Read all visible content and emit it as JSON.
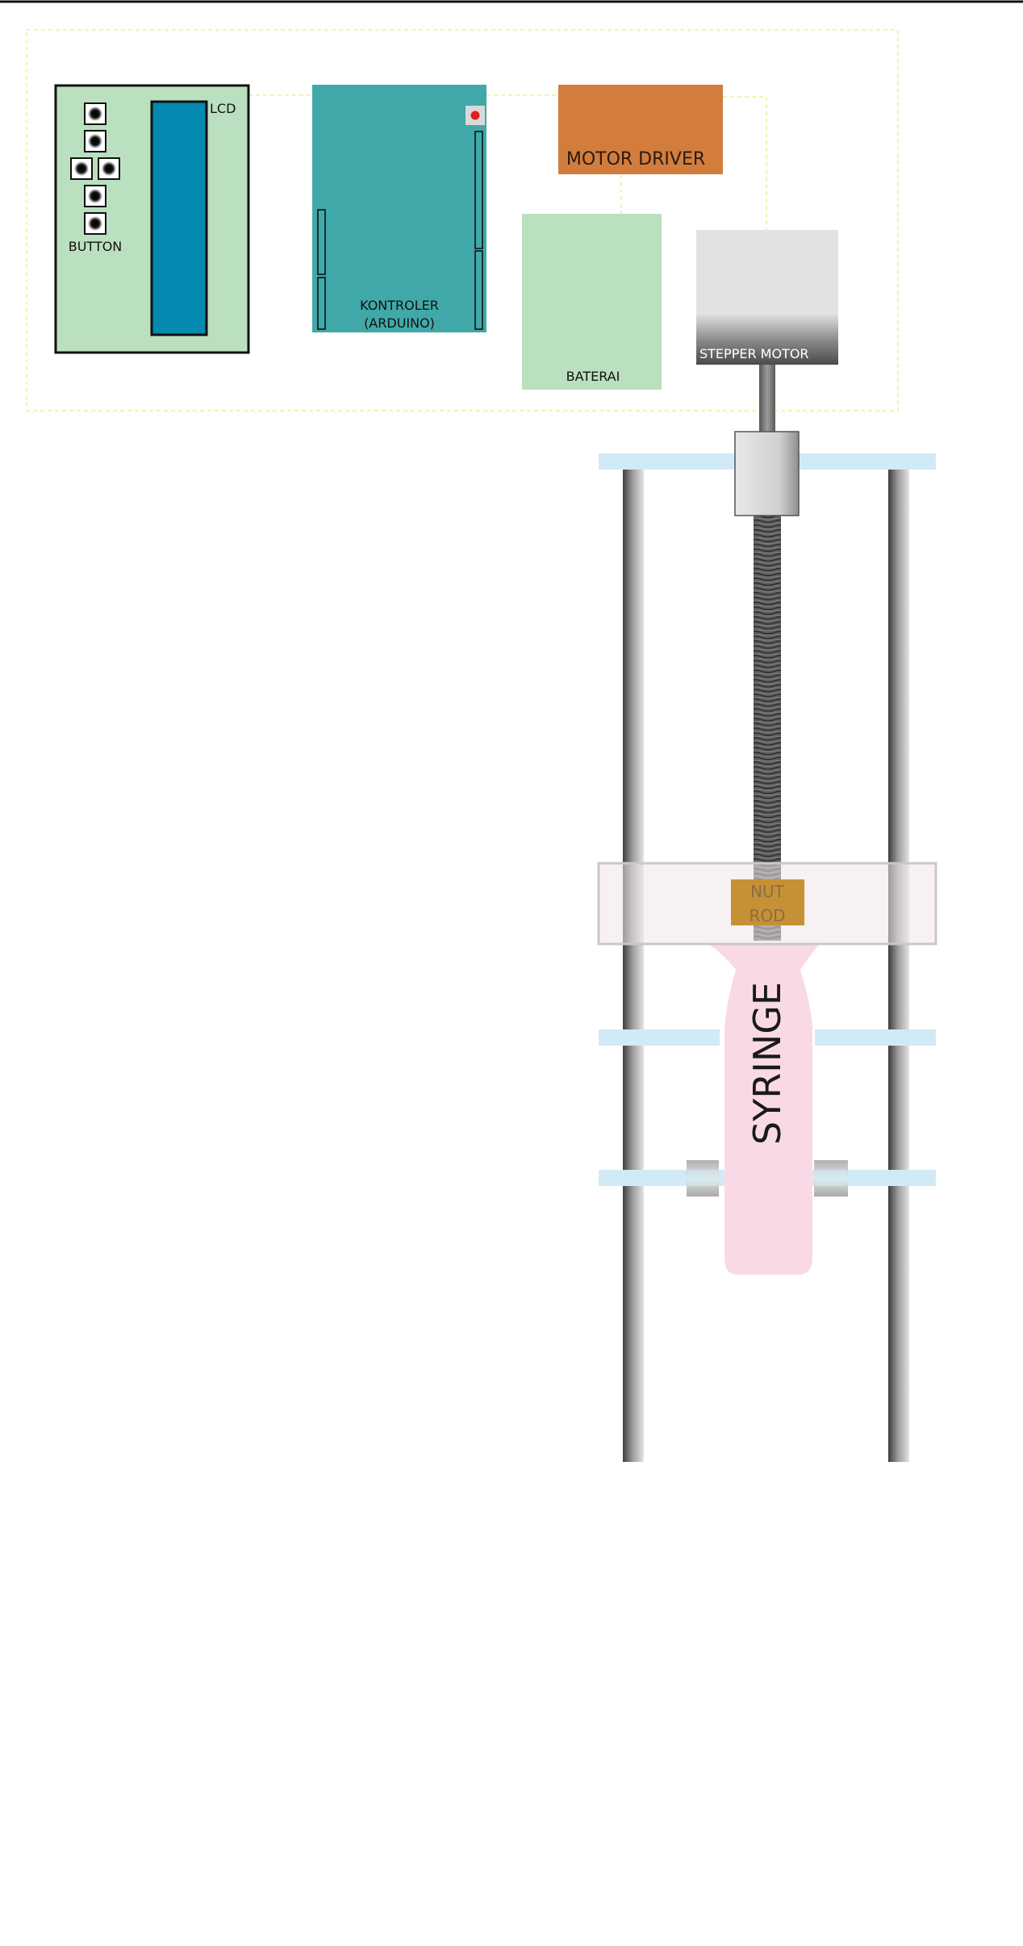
{
  "labels": {
    "button": "BUTTON",
    "lcd": "LCD",
    "controller_line1": "KONTROLER",
    "controller_line2": "(ARDUINO)",
    "motor_driver": "MOTOR DRIVER",
    "battery": "BATERAI",
    "stepper_motor": "STEPPER MOTOR",
    "nut_rod_line1": "NUT",
    "nut_rod_line2": "ROD",
    "syringe": "SYRINGE"
  },
  "colors": {
    "panel_green": "#bbe0bf",
    "lcd_blue": "#0489b0",
    "arduino_teal": "#40a8a8",
    "motor_driver_orange": "#d27d3e",
    "battery_green": "#bbe0bf",
    "motor_grey": "#e1e2e3",
    "motor_dark": "#555555",
    "plate_blue": "#d1ebf6",
    "syringe_pink": "#fad9e6",
    "nut_gold": "#c69135",
    "wire_yellow": "#f0ef9a",
    "led_red": "#e02020"
  }
}
